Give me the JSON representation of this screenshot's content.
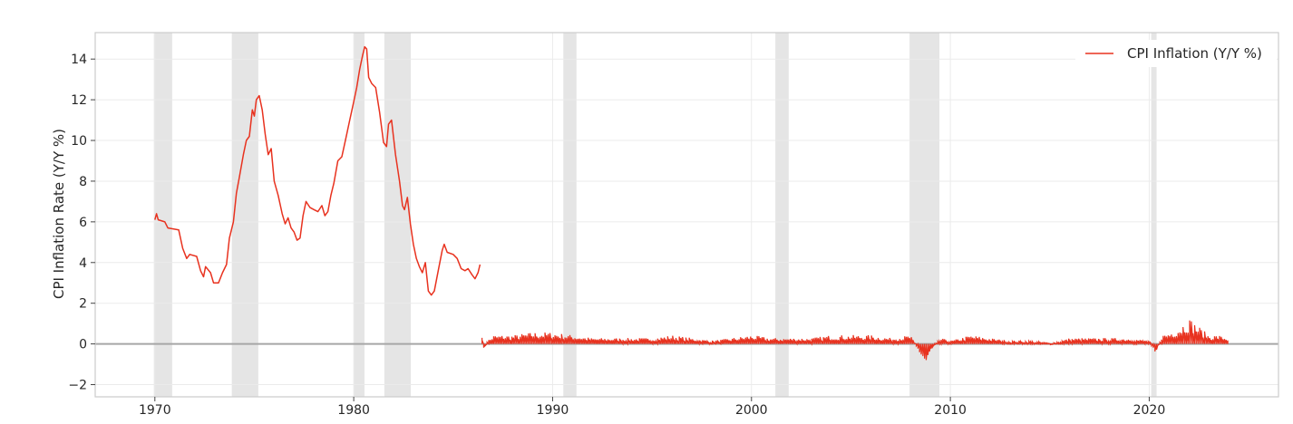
{
  "chart_data": {
    "type": "line",
    "title": "",
    "xlabel": "",
    "ylabel": "CPI Inflation Rate (Y/Y %)",
    "xlim": [
      1967.0,
      2026.5
    ],
    "ylim": [
      -2.6,
      15.3
    ],
    "xticks": [
      1970,
      1980,
      1990,
      2000,
      2010,
      2020
    ],
    "yticks": [
      -2,
      0,
      2,
      4,
      6,
      8,
      10,
      12,
      14
    ],
    "xtick_labels": [
      "1970",
      "1980",
      "1990",
      "2000",
      "2010",
      "2020"
    ],
    "ytick_labels": [
      "−2",
      "0",
      "2",
      "4",
      "6",
      "8",
      "10",
      "12",
      "14"
    ],
    "grid": true,
    "legend": {
      "position": "top-right",
      "entries": [
        "CPI Inflation (Y/Y %)"
      ]
    },
    "zero_line": true,
    "recessions": [
      [
        1969.95,
        1970.87
      ],
      [
        1973.87,
        1975.2
      ],
      [
        1980.0,
        1980.54
      ],
      [
        1981.54,
        1982.87
      ],
      [
        1990.54,
        1991.2
      ],
      [
        2001.2,
        2001.87
      ],
      [
        2007.95,
        2009.45
      ],
      [
        2020.1,
        2020.37
      ]
    ],
    "series": [
      {
        "name": "CPI Inflation (Y/Y %)",
        "color": "#e8321f",
        "points": [
          [
            1970.0,
            6.1
          ],
          [
            1970.08,
            6.4
          ],
          [
            1970.17,
            6.1
          ],
          [
            1970.5,
            6.0
          ],
          [
            1970.65,
            5.7
          ],
          [
            1971.2,
            5.6
          ],
          [
            1971.4,
            4.7
          ],
          [
            1971.6,
            4.2
          ],
          [
            1971.75,
            4.4
          ],
          [
            1972.1,
            4.3
          ],
          [
            1972.3,
            3.6
          ],
          [
            1972.45,
            3.3
          ],
          [
            1972.55,
            3.8
          ],
          [
            1972.8,
            3.5
          ],
          [
            1972.95,
            3.0
          ],
          [
            1973.2,
            3.0
          ],
          [
            1973.4,
            3.5
          ],
          [
            1973.6,
            3.9
          ],
          [
            1973.75,
            5.2
          ],
          [
            1973.95,
            6.0
          ],
          [
            1974.1,
            7.4
          ],
          [
            1974.25,
            8.2
          ],
          [
            1974.45,
            9.3
          ],
          [
            1974.6,
            10.0
          ],
          [
            1974.75,
            10.2
          ],
          [
            1974.9,
            11.5
          ],
          [
            1975.0,
            11.2
          ],
          [
            1975.1,
            12.0
          ],
          [
            1975.25,
            12.2
          ],
          [
            1975.4,
            11.5
          ],
          [
            1975.55,
            10.3
          ],
          [
            1975.7,
            9.3
          ],
          [
            1975.85,
            9.6
          ],
          [
            1976.0,
            8.0
          ],
          [
            1976.2,
            7.3
          ],
          [
            1976.4,
            6.4
          ],
          [
            1976.55,
            5.9
          ],
          [
            1976.7,
            6.2
          ],
          [
            1976.85,
            5.7
          ],
          [
            1977.0,
            5.5
          ],
          [
            1977.15,
            5.1
          ],
          [
            1977.3,
            5.2
          ],
          [
            1977.45,
            6.3
          ],
          [
            1977.6,
            7.0
          ],
          [
            1977.8,
            6.7
          ],
          [
            1978.0,
            6.6
          ],
          [
            1978.2,
            6.5
          ],
          [
            1978.4,
            6.8
          ],
          [
            1978.55,
            6.3
          ],
          [
            1978.7,
            6.5
          ],
          [
            1978.85,
            7.3
          ],
          [
            1979.0,
            7.9
          ],
          [
            1979.2,
            9.0
          ],
          [
            1979.4,
            9.2
          ],
          [
            1979.6,
            10.1
          ],
          [
            1979.8,
            11.0
          ],
          [
            1980.0,
            11.9
          ],
          [
            1980.15,
            12.6
          ],
          [
            1980.3,
            13.5
          ],
          [
            1980.45,
            14.2
          ],
          [
            1980.55,
            14.6
          ],
          [
            1980.65,
            14.5
          ],
          [
            1980.75,
            13.1
          ],
          [
            1980.9,
            12.8
          ],
          [
            1981.1,
            12.6
          ],
          [
            1981.3,
            11.4
          ],
          [
            1981.5,
            9.9
          ],
          [
            1981.65,
            9.7
          ],
          [
            1981.75,
            10.8
          ],
          [
            1981.9,
            11.0
          ],
          [
            1982.1,
            9.3
          ],
          [
            1982.3,
            8.0
          ],
          [
            1982.45,
            6.8
          ],
          [
            1982.55,
            6.6
          ],
          [
            1982.7,
            7.2
          ],
          [
            1982.85,
            5.9
          ],
          [
            1983.0,
            4.9
          ],
          [
            1983.15,
            4.2
          ],
          [
            1983.3,
            3.8
          ],
          [
            1983.45,
            3.5
          ],
          [
            1983.6,
            4.0
          ],
          [
            1983.75,
            2.6
          ],
          [
            1983.9,
            2.4
          ],
          [
            1984.05,
            2.6
          ],
          [
            1984.25,
            3.6
          ],
          [
            1984.45,
            4.6
          ],
          [
            1984.55,
            4.9
          ],
          [
            1984.7,
            4.5
          ],
          [
            1985.0,
            4.4
          ],
          [
            1985.2,
            4.2
          ],
          [
            1985.4,
            3.7
          ],
          [
            1985.6,
            3.6
          ],
          [
            1985.75,
            3.7
          ],
          [
            1985.95,
            3.4
          ],
          [
            1986.1,
            3.2
          ],
          [
            1986.25,
            3.5
          ],
          [
            1986.35,
            3.9
          ],
          [
            1986.45,
            0.3
          ],
          [
            1986.55,
            -0.4
          ],
          [
            1986.65,
            0.1
          ],
          [
            1986.9,
            0.2
          ],
          [
            1987.0,
            0.3
          ],
          [
            1988.0,
            0.3
          ],
          [
            1989.0,
            0.4
          ],
          [
            1990.0,
            0.4
          ],
          [
            1991.0,
            0.3
          ],
          [
            1992.0,
            0.2
          ],
          [
            1993.0,
            0.2
          ],
          [
            1994.0,
            0.2
          ],
          [
            1995.0,
            0.2
          ],
          [
            1996.0,
            0.3
          ],
          [
            1997.0,
            0.2
          ],
          [
            1998.0,
            0.1
          ],
          [
            1999.0,
            0.2
          ],
          [
            2000.0,
            0.3
          ],
          [
            2001.0,
            0.2
          ],
          [
            2002.0,
            0.2
          ],
          [
            2003.0,
            0.2
          ],
          [
            2004.0,
            0.3
          ],
          [
            2005.0,
            0.3
          ],
          [
            2006.0,
            0.3
          ],
          [
            2007.0,
            0.2
          ],
          [
            2008.0,
            0.3
          ],
          [
            2008.8,
            -0.9
          ],
          [
            2009.0,
            -0.3
          ],
          [
            2009.5,
            0.2
          ],
          [
            2010.0,
            0.1
          ],
          [
            2011.0,
            0.3
          ],
          [
            2012.0,
            0.2
          ],
          [
            2013.0,
            0.1
          ],
          [
            2014.0,
            0.1
          ],
          [
            2015.0,
            0.0
          ],
          [
            2016.0,
            0.2
          ],
          [
            2017.0,
            0.2
          ],
          [
            2018.0,
            0.2
          ],
          [
            2019.0,
            0.2
          ],
          [
            2020.0,
            0.1
          ],
          [
            2020.3,
            -0.5
          ],
          [
            2020.6,
            0.3
          ],
          [
            2021.0,
            0.4
          ],
          [
            2021.5,
            0.6
          ],
          [
            2022.0,
            0.9
          ],
          [
            2022.5,
            0.6
          ],
          [
            2023.0,
            0.3
          ],
          [
            2023.5,
            0.3
          ],
          [
            2023.95,
            0.2
          ]
        ]
      }
    ]
  }
}
